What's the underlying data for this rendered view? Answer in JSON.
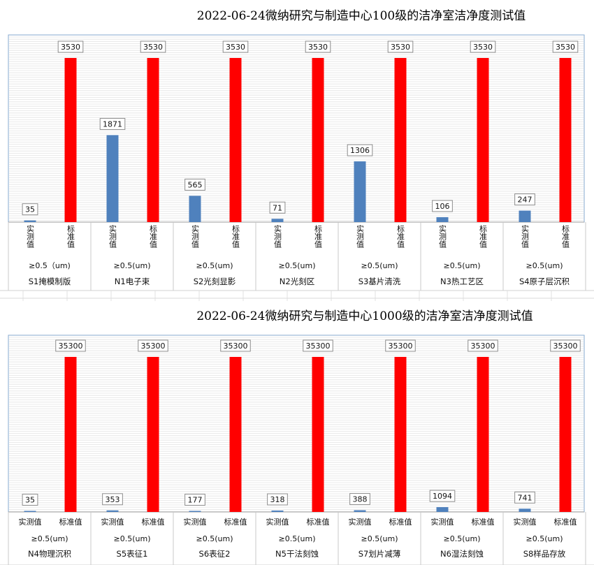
{
  "chart_data": [
    {
      "type": "bar",
      "title": "2022-06-24微纳研究与制造中心100级的洁净室洁净度测试值",
      "series_labels": [
        "实测值",
        "标准值"
      ],
      "particle_sizes": [
        "≥0.5（um)",
        "≥0.5(um)",
        "≥0.5(um)",
        "≥0.5(um)",
        "≥0.5(um)",
        "≥0.5(um)",
        "≥0.5(um)"
      ],
      "categories": [
        "S1掩模制版",
        "N1电子束",
        "S2光刻显影",
        "N2光刻区",
        "S3基片清洗",
        "N3热工艺区",
        "S4原子层沉积"
      ],
      "series": [
        {
          "name": "实测值",
          "color": "#4f81bd",
          "values": [
            35,
            1871,
            565,
            71,
            1306,
            106,
            247
          ]
        },
        {
          "name": "标准值",
          "color": "#ff0000",
          "values": [
            3530,
            3530,
            3530,
            3530,
            3530,
            3530,
            3530
          ]
        }
      ],
      "ylim": [
        0,
        3530
      ],
      "grid": true,
      "vertical_series_labels": true
    },
    {
      "type": "bar",
      "title": "2022-06-24微纳研究与制造中心1000级的洁净室洁净度测试值",
      "series_labels": [
        "实测值",
        "标准值"
      ],
      "particle_sizes": [
        "≥0.5(um)",
        "≥0.5(um)",
        "≥0.5(um)",
        "≥0.5(um)",
        "≥0.5(um)",
        "≥0.5(um)",
        "≥0.5(um)"
      ],
      "categories": [
        "N4物理沉积",
        "S5表征1",
        "S6表征2",
        "N5干法刻蚀",
        "S7划片减薄",
        "N6湿法刻蚀",
        "S8样品存放"
      ],
      "series": [
        {
          "name": "实测值",
          "color": "#4f81bd",
          "values": [
            35,
            353,
            177,
            318,
            388,
            1094,
            741
          ]
        },
        {
          "name": "标准值",
          "color": "#ff0000",
          "values": [
            35300,
            35300,
            35300,
            35300,
            35300,
            35300,
            35300
          ]
        }
      ],
      "ylim": [
        0,
        35300
      ],
      "grid": true,
      "vertical_series_labels": false
    }
  ]
}
